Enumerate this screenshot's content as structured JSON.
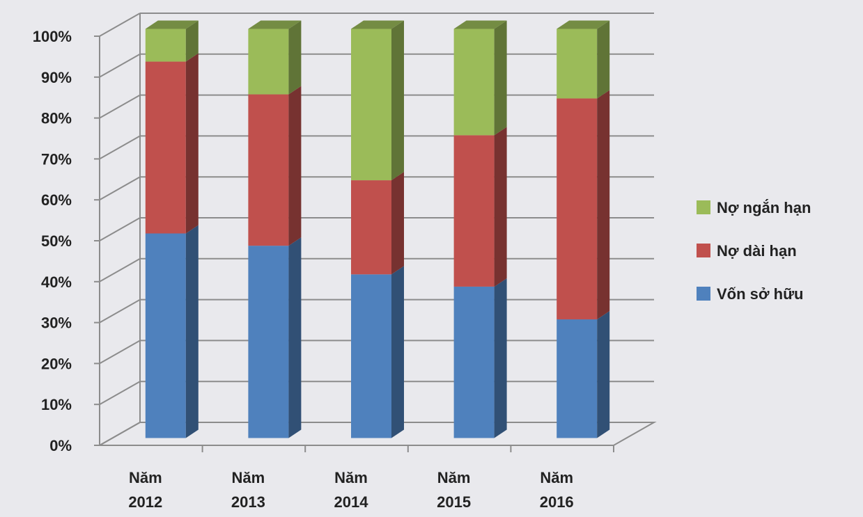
{
  "chart_data": {
    "type": "bar",
    "stacked": true,
    "percent_stacked": true,
    "three_d": true,
    "title": "",
    "xlabel": "",
    "ylabel": "",
    "ylim": [
      0,
      100
    ],
    "y_ticks": [
      "0%",
      "10%",
      "20%",
      "30%",
      "40%",
      "50%",
      "60%",
      "70%",
      "80%",
      "90%",
      "100%"
    ],
    "grid": true,
    "legend_position": "right",
    "categories": [
      [
        "Năm",
        "2012"
      ],
      [
        "Năm",
        "2013"
      ],
      [
        "Năm",
        "2014"
      ],
      [
        "Năm",
        "2015"
      ],
      [
        "Năm",
        "2016"
      ]
    ],
    "series": [
      {
        "name": "Vốn sở hữu",
        "color": "#4f81bd",
        "values": [
          50,
          47,
          40,
          37,
          29
        ]
      },
      {
        "name": "Nợ dài hạn",
        "color": "#c0504d",
        "values": [
          42,
          37,
          23,
          37,
          54
        ]
      },
      {
        "name": "Nợ ngắn hạn",
        "color": "#9bbb59",
        "values": [
          8,
          16,
          37,
          26,
          17
        ]
      }
    ],
    "legend_order": [
      "Nợ ngắn hạn",
      "Nợ dài hạn",
      "Vốn sở hữu"
    ]
  }
}
